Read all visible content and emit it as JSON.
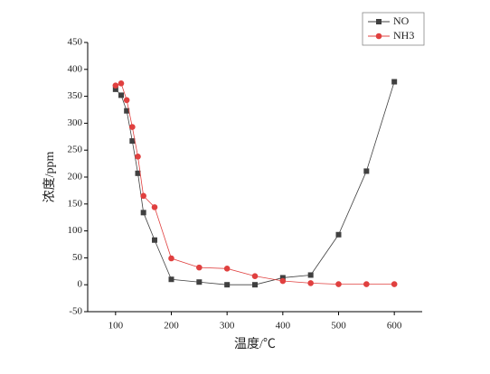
{
  "chart_data": {
    "type": "line",
    "x_label": "温度/℃",
    "y_label": "浓度/ppm",
    "x": [
      100,
      110,
      120,
      130,
      140,
      150,
      170,
      200,
      250,
      300,
      350,
      400,
      450,
      500,
      550,
      600
    ],
    "series": [
      {
        "name": "NO",
        "color": "#404040",
        "marker": "square",
        "values": [
          363,
          352,
          323,
          267,
          207,
          134,
          83,
          10,
          5,
          0,
          0,
          13,
          18,
          93,
          211,
          377
        ]
      },
      {
        "name": "NH3",
        "color": "#e0403f",
        "marker": "circle",
        "values": [
          370,
          374,
          343,
          293,
          238,
          165,
          144,
          49,
          32,
          30,
          16,
          7,
          3,
          1,
          1,
          1
        ]
      }
    ],
    "xlim": [
      50,
      650
    ],
    "xticks": [
      100,
      200,
      300,
      400,
      500,
      600
    ],
    "ylim": [
      -50,
      450
    ],
    "yticks": [
      -50,
      0,
      50,
      100,
      150,
      200,
      250,
      300,
      350,
      400,
      450
    ],
    "legend": "upper right"
  }
}
